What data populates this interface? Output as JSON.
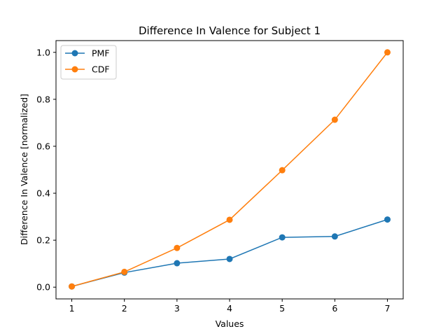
{
  "chart_data": {
    "type": "line",
    "title": "Difference In Valence for Subject 1",
    "xlabel": "Values",
    "ylabel": "Difference In Valence [normalized]",
    "x": [
      1,
      2,
      3,
      4,
      5,
      6,
      7
    ],
    "xlim": [
      0.7,
      7.3
    ],
    "ylim": [
      -0.05,
      1.05
    ],
    "xticks": [
      "1",
      "2",
      "3",
      "4",
      "5",
      "6",
      "7"
    ],
    "yticks": [
      "0.0",
      "0.2",
      "0.4",
      "0.6",
      "0.8",
      "1.0"
    ],
    "grid": false,
    "legend_position": "top-left",
    "series": [
      {
        "name": "PMF",
        "color": "#1f77b4",
        "values": [
          0.003,
          0.062,
          0.102,
          0.12,
          0.212,
          0.216,
          0.288
        ]
      },
      {
        "name": "CDF",
        "color": "#ff7f0e",
        "values": [
          0.003,
          0.065,
          0.167,
          0.287,
          0.498,
          0.713,
          1.0
        ]
      }
    ]
  }
}
